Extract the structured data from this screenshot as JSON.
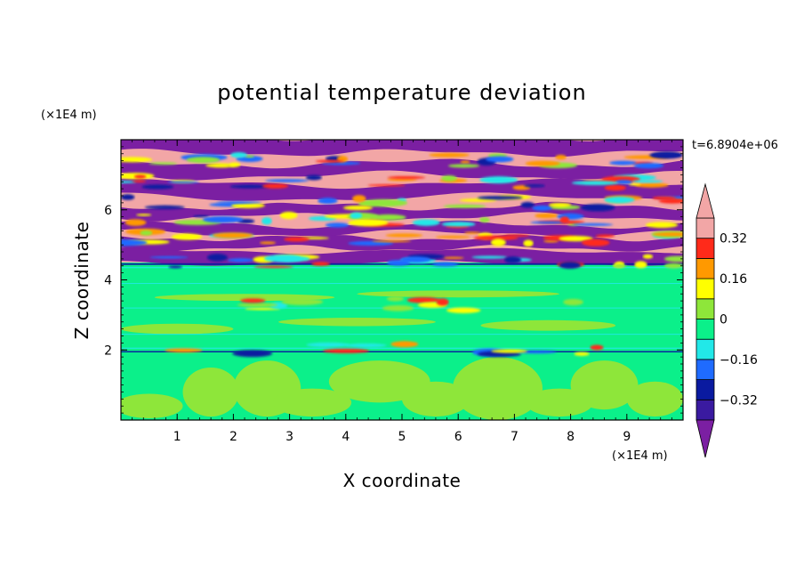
{
  "chart_data": {
    "type": "heatmap",
    "title": "potential temperature deviation",
    "xlabel": "X coordinate",
    "ylabel": "Z coordinate",
    "x_unit": "(×1E4 m)",
    "y_unit": "(×1E4 m)",
    "time_label": "t=6.8904e+06",
    "xlim": [
      0,
      10
    ],
    "ylim": [
      0,
      8
    ],
    "x_ticks": [
      1,
      2,
      3,
      4,
      5,
      6,
      7,
      8,
      9
    ],
    "y_ticks": [
      2,
      4,
      6
    ],
    "x_tick_labels": [
      "1",
      "2",
      "3",
      "4",
      "5",
      "6",
      "7",
      "8",
      "9"
    ],
    "y_tick_labels": [
      "2",
      "4",
      "6"
    ],
    "colorbar": {
      "levels": [
        -0.4,
        -0.32,
        -0.24,
        -0.16,
        -0.08,
        0,
        0.08,
        0.16,
        0.24,
        0.32,
        0.4
      ],
      "tick_values": [
        -0.32,
        -0.16,
        0,
        0.16,
        0.32
      ],
      "tick_labels": [
        "−0.32",
        "−0.16",
        "0",
        "0.16",
        "0.32"
      ],
      "colors": [
        "#7b1fa2",
        "#2e1a96",
        "#0a1aa0",
        "#1f6bff",
        "#22e8e8",
        "#0bf08a",
        "#8ee63a",
        "#ffff00",
        "#ff9900",
        "#ff2a1a",
        "#f2a6a6"
      ],
      "under_color": "#7b1fa2",
      "over_color": "#f2a6a6"
    },
    "field_summary": {
      "upper_layer_z": [
        4.5,
        8
      ],
      "upper_layer_pattern": "alternating bands of < -0.4 and > 0.4",
      "lower_layer_z": [
        0,
        4.5
      ],
      "lower_layer_pattern": "mostly -0.08 to 0.08 with patches of 0 to 0.08 near the ground"
    }
  }
}
